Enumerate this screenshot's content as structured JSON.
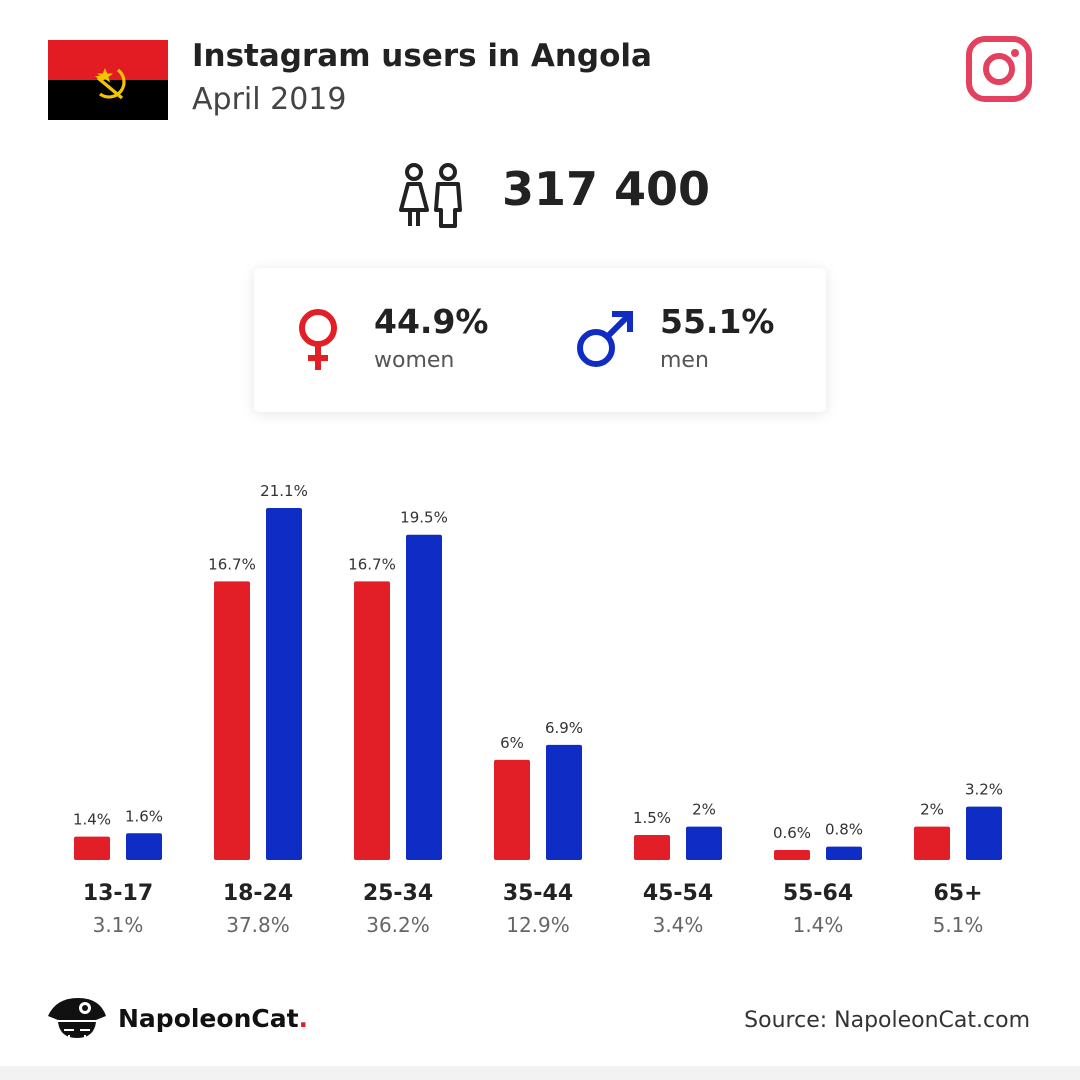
{
  "header": {
    "title": "Instagram users in Angola",
    "subtitle": "April 2019",
    "flag_icon": "angola-flag",
    "platform_icon": "instagram-icon"
  },
  "total": {
    "icon": "users-icon",
    "value": "317 400"
  },
  "gender": {
    "women": {
      "icon": "female-icon",
      "pct": "44.9%",
      "label": "women"
    },
    "men": {
      "icon": "male-icon",
      "pct": "55.1%",
      "label": "men"
    }
  },
  "colors": {
    "women": "#e21f26",
    "men": "#0f2cc4",
    "instagram": "#e4405f",
    "flag_red": "#e31b23",
    "flag_black": "#000000",
    "flag_emblem": "#f5c400"
  },
  "chart_data": {
    "type": "bar",
    "categories": [
      "13-17",
      "18-24",
      "25-34",
      "35-44",
      "45-54",
      "55-64",
      "65+"
    ],
    "totals": [
      "3.1%",
      "37.8%",
      "36.2%",
      "12.9%",
      "3.4%",
      "1.4%",
      "5.1%"
    ],
    "series": [
      {
        "name": "women",
        "values": [
          1.4,
          16.7,
          16.7,
          6,
          1.5,
          0.6,
          2
        ],
        "labels": [
          "1.4%",
          "16.7%",
          "16.7%",
          "6%",
          "1.5%",
          "0.6%",
          "2%"
        ]
      },
      {
        "name": "men",
        "values": [
          1.6,
          21.1,
          19.5,
          6.9,
          2,
          0.8,
          3.2
        ],
        "labels": [
          "1.6%",
          "21.1%",
          "19.5%",
          "6.9%",
          "2%",
          "0.8%",
          "3.2%"
        ]
      }
    ],
    "ylim": [
      0,
      21.1
    ]
  },
  "footer": {
    "brand_name": "NapoleonCat",
    "brand_dot": ".",
    "logo_icon": "napoleoncat-logo",
    "source": "Source: NapoleonCat.com"
  }
}
